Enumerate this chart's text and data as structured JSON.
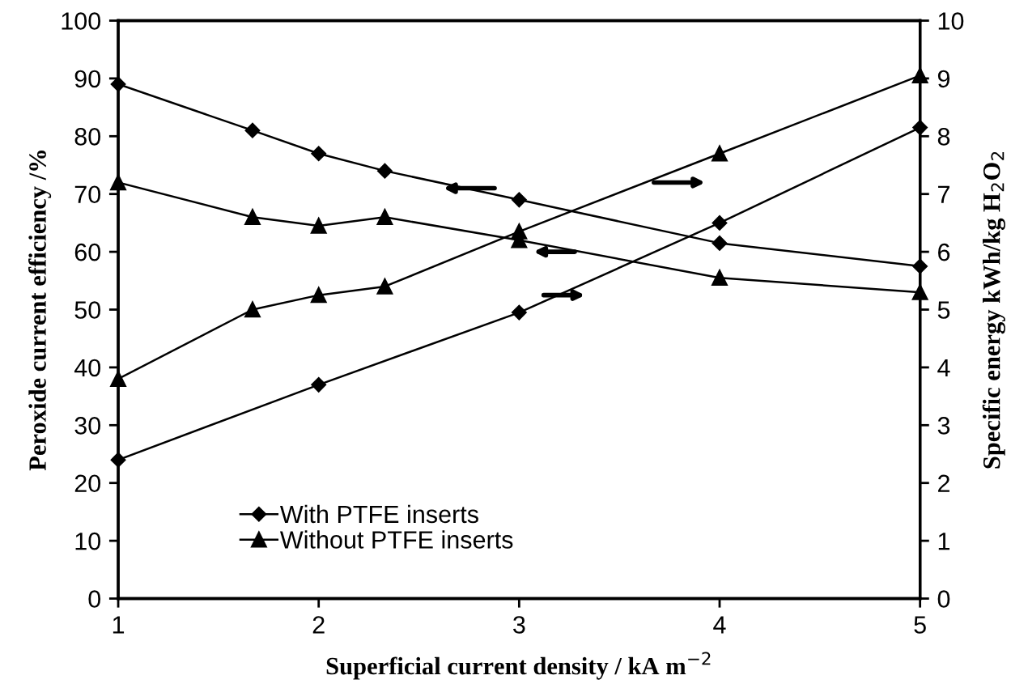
{
  "chart_data": {
    "type": "line",
    "xlabel": "Superficial current density / kA m$^{−2}$",
    "ylabel": "Peroxide current efficiency /%",
    "y2label": "Specific energy kWh/kg H$_{2}$O$_{2}$",
    "xlim": [
      1,
      5
    ],
    "xticks": [
      1,
      2,
      3,
      4,
      5
    ],
    "ylim": [
      0,
      100
    ],
    "yticks": [
      0,
      10,
      20,
      30,
      40,
      50,
      60,
      70,
      80,
      90,
      100
    ],
    "y2lim": [
      0,
      10
    ],
    "y2ticks": [
      0,
      1,
      2,
      3,
      4,
      5,
      6,
      7,
      8,
      9,
      10
    ],
    "grid": false,
    "legend": "bottom left",
    "series": [
      {
        "name": "With PTFE inserts",
        "color": "#000000",
        "marker": "diamond",
        "x": [
          1,
          1.67,
          2,
          2.33,
          3,
          4,
          5
        ],
        "values": [
          89,
          81,
          77,
          74,
          69,
          61.5,
          57.5
        ]
      },
      {
        "name": "Without PTFE inserts",
        "color": "#000000",
        "marker": "triangle",
        "x": [
          1,
          1.67,
          2,
          2.33,
          3,
          4,
          5
        ],
        "values": [
          72,
          66,
          64.5,
          66,
          62,
          55.5,
          53
        ]
      },
      {
        "color": "#000000",
        "marker": "diamond",
        "axis": "y2",
        "x": [
          1,
          2,
          3,
          4,
          5
        ],
        "values": [
          2.4,
          3.7,
          4.95,
          6.5,
          8.15
        ]
      },
      {
        "color": "#000000",
        "marker": "triangle",
        "axis": "y2",
        "x": [
          1,
          1.67,
          2,
          2.33,
          3,
          4,
          5
        ],
        "values": [
          3.8,
          5.0,
          5.25,
          5.4,
          6.35,
          7.7,
          9.05
        ]
      }
    ]
  }
}
